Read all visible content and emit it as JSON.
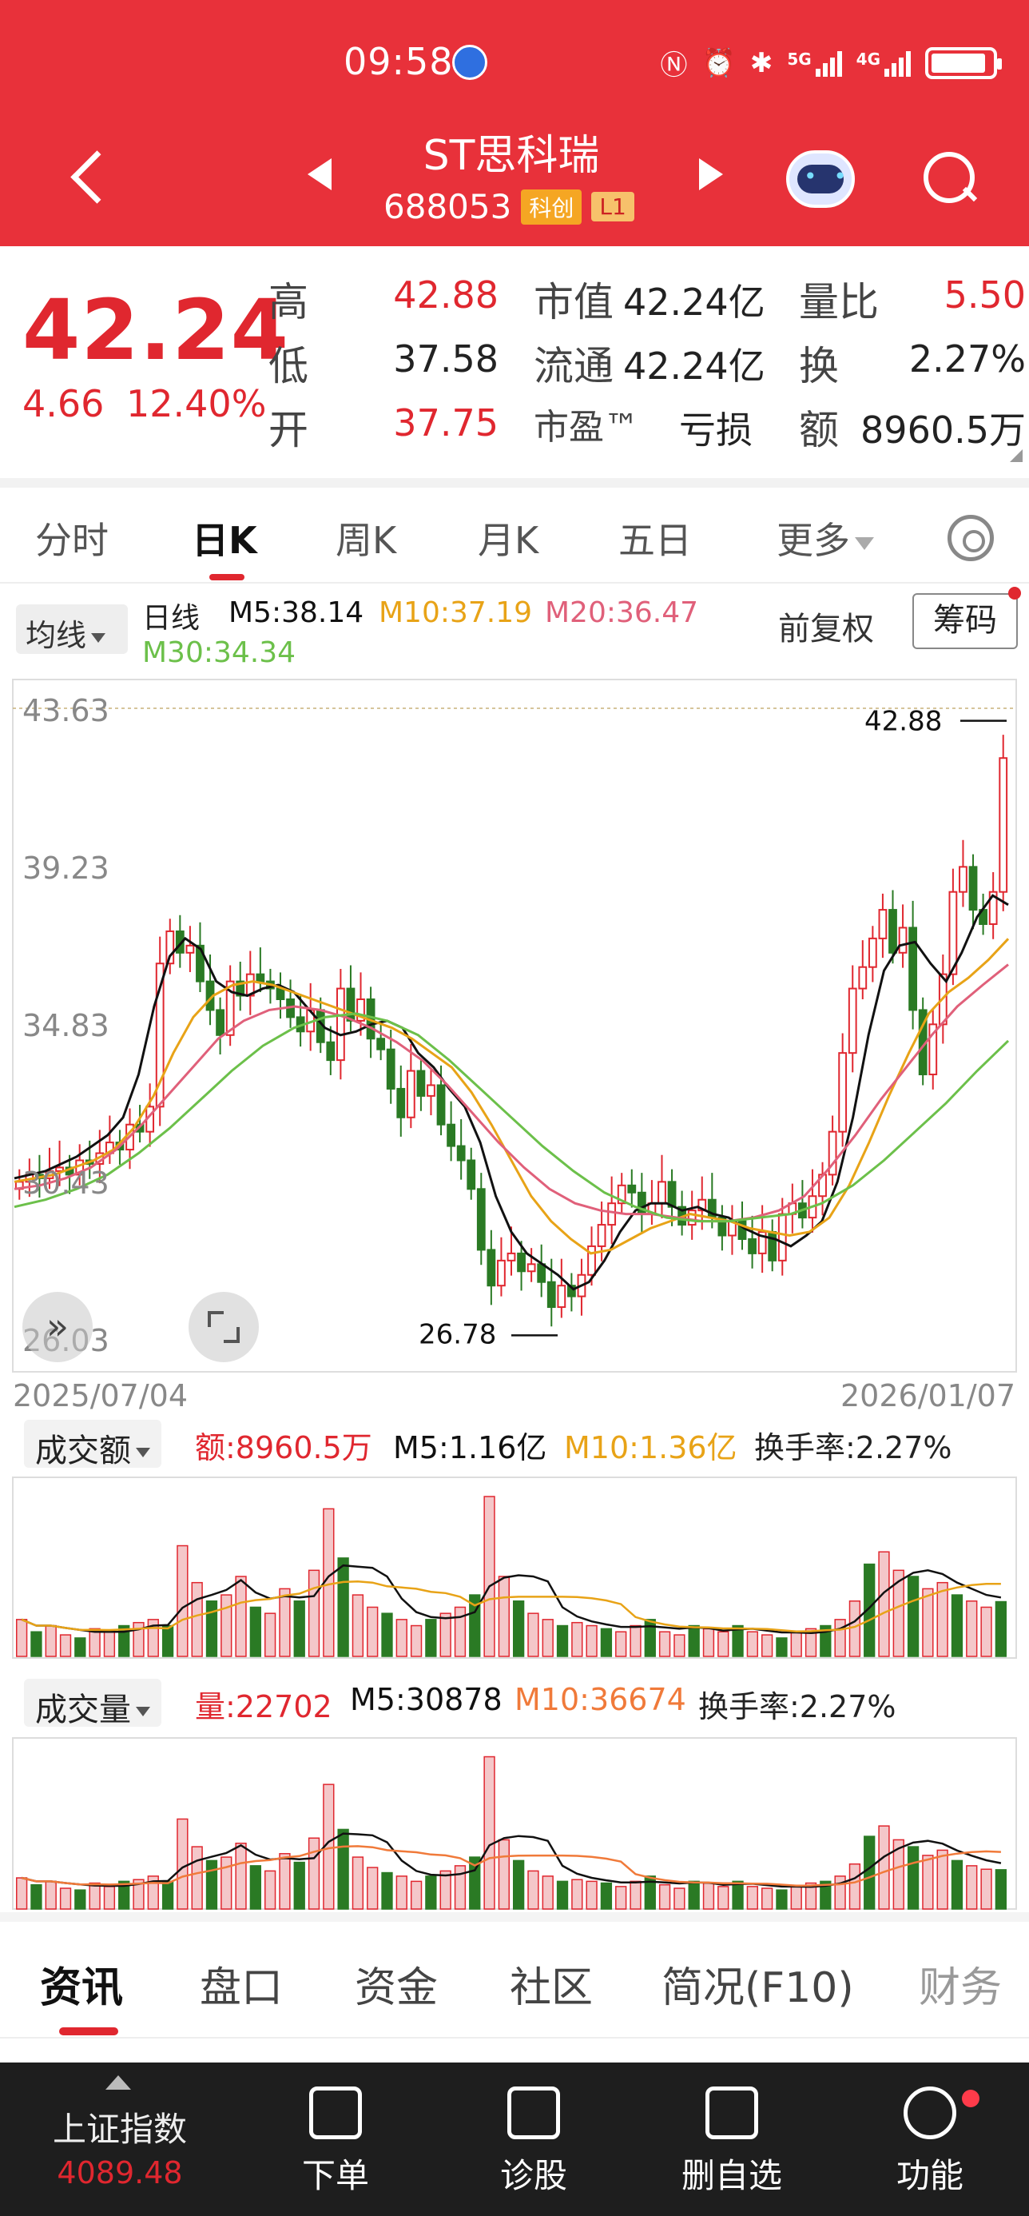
{
  "status_bar": {
    "time": "09:58",
    "net_5g": "5G",
    "net_4g": "4G",
    "battery_level": 0.9,
    "icons": [
      "nfc-icon",
      "alarm-icon",
      "bluetooth-icon",
      "signal-5g-icon",
      "signal-4g-icon",
      "battery-charging-icon"
    ]
  },
  "header": {
    "stock_name": "ST思科瑞",
    "stock_code": "688053",
    "badge_board": "科创",
    "badge_level": "L1",
    "accent_color": "#e8313a"
  },
  "quote": {
    "price": "42.24",
    "change": "4.66",
    "change_pct": "12.40%",
    "high_label": "高",
    "high": "42.88",
    "low_label": "低",
    "low": "37.58",
    "open_label": "开",
    "open": "37.75",
    "mktcap_label": "市值",
    "mktcap": "42.24亿",
    "float_label": "流通",
    "float": "42.24亿",
    "pe_label": "市盈™",
    "pe": "亏损",
    "vol_ratio_label": "量比",
    "vol_ratio": "5.50",
    "turnover_label": "换",
    "turnover": "2.27%",
    "amount_label": "额",
    "amount": "8960.5万"
  },
  "period_tabs": [
    "分时",
    "日K",
    "周K",
    "月K",
    "五日",
    "更多"
  ],
  "active_period": "日K",
  "ma": {
    "selector": "均线",
    "period_label": "日线",
    "m5": "M5:38.14",
    "m10": "M10:37.19",
    "m20": "M20:36.47",
    "m30": "M30:34.34",
    "adjust": "前复权",
    "chip_button": "筹码",
    "colors": {
      "m5": "#111111",
      "m10": "#e8a317",
      "m20": "#e0607a",
      "m30": "#6cc04a"
    }
  },
  "chart_data": [
    {
      "type": "candlestick",
      "title": "日线",
      "ylim": [
        26.03,
        43.63
      ],
      "y_ticks": [
        "43.63",
        "39.23",
        "34.83",
        "30.43",
        "26.03"
      ],
      "x_range": [
        "2025/07/04",
        "2026/01/07"
      ],
      "max_label": "42.88",
      "min_label": "26.78",
      "up_color": "#e0272f",
      "down_color": "#2a7a24",
      "close_path": [
        30.4,
        30.6,
        30.5,
        30.7,
        30.8,
        30.6,
        31.0,
        30.9,
        31.2,
        31.5,
        31.3,
        32.0,
        31.8,
        32.5,
        36.5,
        37.4,
        36.8,
        37.0,
        36.0,
        35.2,
        34.5,
        36.0,
        35.6,
        36.2,
        36.0,
        35.8,
        35.5,
        35.0,
        34.6,
        35.2,
        34.3,
        33.8,
        35.8,
        34.9,
        35.5,
        34.4,
        34.1,
        33.0,
        32.2,
        33.5,
        32.8,
        33.1,
        32.0,
        31.4,
        31.0,
        30.2,
        28.5,
        27.5,
        28.2,
        28.4,
        27.9,
        28.1,
        27.6,
        26.9,
        27.5,
        27.2,
        27.8,
        28.6,
        29.2,
        29.8,
        30.3,
        30.1,
        29.5,
        29.8,
        30.4,
        29.7,
        29.2,
        29.6,
        29.9,
        29.4,
        28.9,
        29.3,
        28.8,
        28.4,
        29.0,
        28.2,
        29.5,
        29.8,
        29.4,
        30.0,
        30.6,
        31.8,
        34.0,
        35.8,
        36.4,
        37.2,
        38.0,
        36.8,
        37.5,
        35.2,
        33.4,
        34.8,
        36.2,
        38.5,
        39.2,
        38.0,
        37.6,
        38.5,
        42.24
      ],
      "ma": {
        "m5": [
          30.5,
          30.6,
          30.7,
          30.9,
          31.1,
          31.4,
          31.7,
          32.2,
          33.4,
          35.3,
          36.7,
          37.2,
          36.9,
          36.0,
          35.7,
          35.6,
          35.8,
          35.9,
          35.7,
          35.2,
          34.7,
          34.5,
          34.6,
          34.8,
          34.9,
          34.7,
          34.0,
          33.6,
          33.0,
          32.5,
          31.5,
          30.0,
          29.0,
          28.4,
          28.1,
          27.8,
          27.4,
          27.6,
          28.2,
          29.0,
          29.6,
          29.8,
          29.8,
          29.6,
          29.7,
          29.5,
          29.4,
          29.1,
          28.9,
          28.8,
          28.6,
          28.9,
          29.3,
          30.4,
          32.2,
          34.5,
          36.3,
          37.0,
          37.1,
          36.5,
          36.0,
          36.8,
          37.8,
          38.4,
          38.14
        ],
        "m10": [
          30.4,
          30.5,
          30.6,
          30.8,
          31.0,
          31.3,
          31.9,
          32.8,
          34.0,
          35.0,
          35.6,
          35.9,
          36.0,
          35.9,
          35.7,
          35.5,
          35.3,
          35.1,
          34.9,
          34.7,
          34.4,
          34.0,
          33.6,
          32.9,
          32.0,
          31.0,
          30.0,
          29.3,
          28.8,
          28.4,
          28.5,
          28.8,
          29.1,
          29.3,
          29.5,
          29.4,
          29.3,
          29.1,
          29.0,
          28.9,
          29.0,
          29.4,
          30.3,
          31.5,
          32.8,
          34.0,
          35.1,
          35.7,
          36.1,
          36.6,
          37.19
        ],
        "m20": [
          30.2,
          30.3,
          30.5,
          30.8,
          31.3,
          32.0,
          32.8,
          33.6,
          34.4,
          34.9,
          35.2,
          35.3,
          35.2,
          35.0,
          34.7,
          34.3,
          33.8,
          33.1,
          32.3,
          31.5,
          30.8,
          30.2,
          29.8,
          29.6,
          29.5,
          29.5,
          29.4,
          29.3,
          29.3,
          29.4,
          29.6,
          30.0,
          30.8,
          31.7,
          32.7,
          33.6,
          34.5,
          35.3,
          35.9,
          36.47
        ],
        "m30": [
          29.7,
          29.9,
          30.2,
          30.6,
          31.2,
          31.9,
          32.7,
          33.5,
          34.2,
          34.7,
          35.0,
          35.1,
          34.9,
          34.5,
          33.8,
          33.0,
          32.2,
          31.4,
          30.7,
          30.1,
          29.7,
          29.4,
          29.3,
          29.3,
          29.4,
          29.5,
          29.8,
          30.3,
          31.0,
          31.8,
          32.6,
          33.5,
          34.34
        ]
      }
    },
    {
      "type": "bar",
      "title": "成交额",
      "series_label": "额:8960.5万",
      "m5": "M5:1.16亿",
      "m10": "M10:1.36亿",
      "turnover": "换手率:2.27%",
      "values": [
        0.6,
        0.4,
        0.5,
        0.35,
        0.3,
        0.45,
        0.4,
        0.5,
        0.55,
        0.6,
        0.5,
        1.8,
        1.2,
        0.9,
        1.0,
        1.3,
        0.8,
        0.7,
        1.1,
        0.9,
        1.4,
        2.4,
        1.6,
        1.0,
        0.8,
        0.7,
        0.6,
        0.5,
        0.6,
        0.7,
        0.8,
        1.0,
        2.6,
        1.3,
        0.9,
        0.7,
        0.6,
        0.5,
        0.55,
        0.5,
        0.45,
        0.4,
        0.5,
        0.6,
        0.4,
        0.35,
        0.5,
        0.45,
        0.4,
        0.5,
        0.4,
        0.35,
        0.3,
        0.4,
        0.45,
        0.5,
        0.6,
        0.9,
        1.5,
        1.7,
        1.4,
        1.3,
        1.1,
        1.2,
        1.0,
        0.9,
        0.8,
        0.89
      ],
      "colors": {
        "m5": "#111111",
        "m10": "#e8a317"
      }
    },
    {
      "type": "bar",
      "title": "成交量",
      "series_label": "量:22702",
      "m5": "M5:30878",
      "m10": "M10:36674",
      "turnover": "换手率:2.27%",
      "values": [
        18000,
        14000,
        16000,
        12000,
        11000,
        15000,
        13000,
        16000,
        17000,
        19000,
        16000,
        52000,
        36000,
        28000,
        30000,
        38000,
        25000,
        22000,
        32000,
        27000,
        41000,
        72000,
        46000,
        30000,
        24000,
        21000,
        19000,
        16000,
        19000,
        22000,
        25000,
        30000,
        88000,
        40000,
        28000,
        22000,
        19000,
        16000,
        17000,
        16000,
        15000,
        13000,
        16000,
        19000,
        14000,
        12000,
        16000,
        15000,
        13000,
        16000,
        13000,
        12000,
        11000,
        13000,
        15000,
        16000,
        19000,
        26000,
        42000,
        48000,
        40000,
        36000,
        31000,
        34000,
        28000,
        25000,
        23000,
        22702
      ],
      "colors": {
        "m5": "#111111",
        "m10": "#f07a3a"
      }
    }
  ],
  "chart_labels": {
    "date_start": "2025/07/04",
    "date_end": "2026/01/07"
  },
  "indicators": {
    "amount_selector": "成交额",
    "qty_selector": "成交量"
  },
  "info_tabs": [
    "资讯",
    "盘口",
    "资金",
    "社区",
    "简况(F10)",
    "财务"
  ],
  "bottom_bar": {
    "index_name": "上证指数",
    "index_value": "4089.48",
    "items": [
      "下单",
      "诊股",
      "删自选",
      "功能"
    ]
  }
}
